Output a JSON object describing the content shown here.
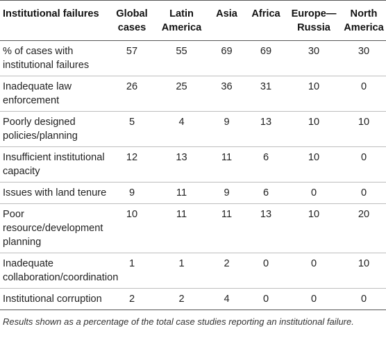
{
  "table": {
    "headers": [
      "Institutional failures",
      "Global cases",
      "Latin America",
      "Asia",
      "Africa",
      "Europe—Russia",
      "North America"
    ],
    "rows": [
      {
        "label": "% of cases with institutional failures",
        "values": [
          "57",
          "55",
          "69",
          "69",
          "30",
          "30"
        ]
      },
      {
        "label": "Inadequate law enforcement",
        "values": [
          "26",
          "25",
          "36",
          "31",
          "10",
          "0"
        ]
      },
      {
        "label": "Poorly designed policies/planning",
        "values": [
          "5",
          "4",
          "9",
          "13",
          "10",
          "10"
        ]
      },
      {
        "label": "Insufficient institutional capacity",
        "values": [
          "12",
          "13",
          "11",
          "6",
          "10",
          "0"
        ]
      },
      {
        "label": "Issues with land tenure",
        "values": [
          "9",
          "11",
          "9",
          "6",
          "0",
          "0"
        ]
      },
      {
        "label": "Poor resource/development planning",
        "values": [
          "10",
          "11",
          "11",
          "13",
          "10",
          "20"
        ]
      },
      {
        "label": "Inadequate collaboration/coordination",
        "values": [
          "1",
          "1",
          "2",
          "0",
          "0",
          "10"
        ]
      },
      {
        "label": "Institutional corruption",
        "values": [
          "2",
          "2",
          "4",
          "0",
          "0",
          "0"
        ]
      }
    ]
  },
  "footnote": "Results shown as a percentage of the total case studies reporting an institutional failure."
}
